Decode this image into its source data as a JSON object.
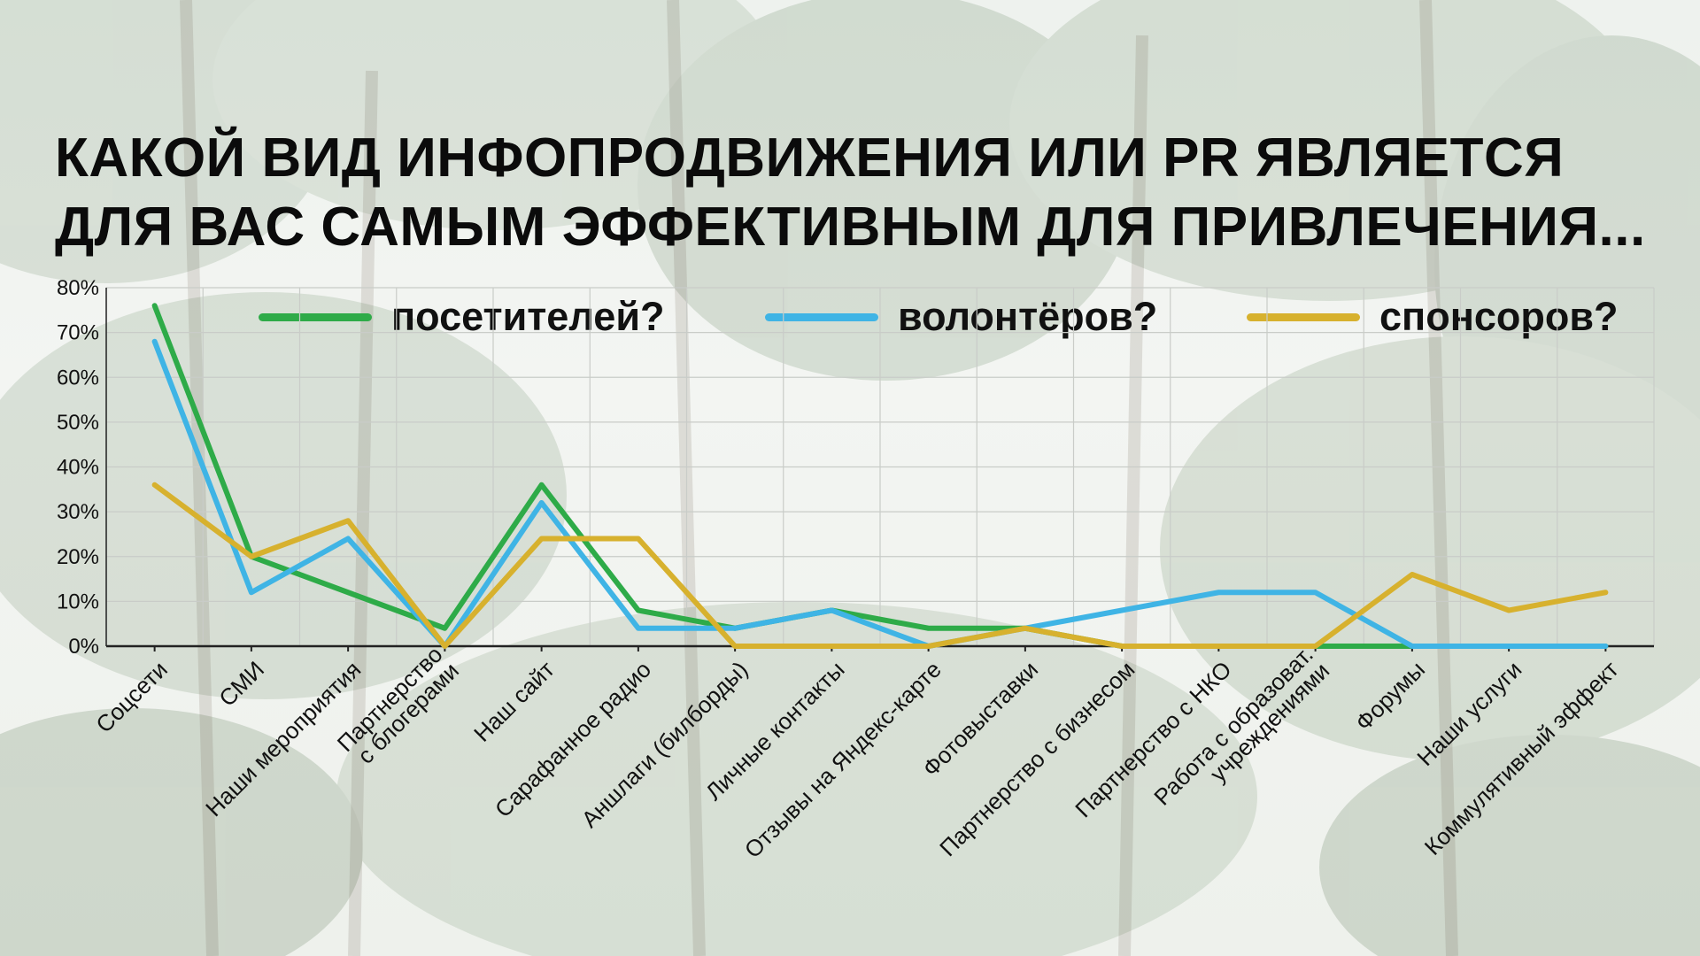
{
  "title": {
    "line1": "КАКОЙ ВИД ИНФОПРОДВИЖЕНИЯ ИЛИ PR ЯВЛЯЕТСЯ",
    "line2": "ДЛЯ ВАС САМЫМ ЭФФЕКТИВНЫМ ДЛЯ ПРИВЛЕЧЕНИЯ..."
  },
  "legend": [
    {
      "label": "посетителей?",
      "color": "#2eab48"
    },
    {
      "label": "волонтёров?",
      "color": "#3fb4e5"
    },
    {
      "label": "спонсоров?",
      "color": "#d7b12e"
    }
  ],
  "chart_data": {
    "type": "line",
    "title": "КАКОЙ ВИД ИНФОПРОДВИЖЕНИЯ ИЛИ PR ЯВЛЯЕТСЯ ДЛЯ ВАС САМЫМ ЭФФЕКТИВНЫМ ДЛЯ ПРИВЛЕЧЕНИЯ...",
    "categories": [
      "Соцсети",
      "СМИ",
      "Наши мероприятия",
      "Партнерство\nс блогерами",
      "Наш сайт",
      "Сарафанное радио",
      "Аншлаги (билборды)",
      "Личные контакты",
      "Отзывы на Яндекс-карте",
      "Фотовыставки",
      "Партнерство с бизнесом",
      "Партнерство с НКО",
      "Работа с образоват.\nучреждениями",
      "Форумы",
      "Наши услуги",
      "Коммулятивный эффект"
    ],
    "series": [
      {
        "name": "посетителей?",
        "color": "#2eab48",
        "values": [
          76,
          20,
          12,
          4,
          36,
          8,
          4,
          8,
          4,
          4,
          0,
          0,
          0,
          0,
          0,
          0
        ]
      },
      {
        "name": "волонтёров?",
        "color": "#3fb4e5",
        "values": [
          68,
          12,
          24,
          0,
          32,
          4,
          4,
          8,
          0,
          4,
          8,
          12,
          12,
          0,
          0,
          0
        ]
      },
      {
        "name": "спонсоров?",
        "color": "#d7b12e",
        "values": [
          36,
          20,
          28,
          0,
          24,
          24,
          0,
          0,
          0,
          4,
          0,
          0,
          0,
          16,
          8,
          12
        ]
      }
    ],
    "y_ticks": [
      "0%",
      "10%",
      "20%",
      "30%",
      "40%",
      "50%",
      "60%",
      "70%",
      "80%"
    ],
    "ylim": [
      0,
      80
    ],
    "y_unit": "%",
    "grid": true,
    "legend_position": "top"
  }
}
